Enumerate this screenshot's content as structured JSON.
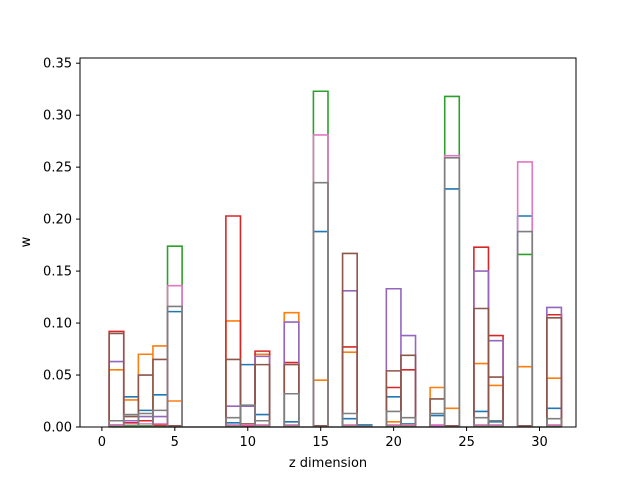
{
  "chart_data": {
    "type": "step-histogram",
    "title": "",
    "xlabel": "z dimension",
    "ylabel": "w",
    "xlim": [
      -1.5,
      32.5
    ],
    "ylim": [
      0,
      0.355
    ],
    "xticks": [
      0,
      5,
      10,
      15,
      20,
      25,
      30
    ],
    "yticks": [
      0.0,
      0.05,
      0.1,
      0.15,
      0.2,
      0.25,
      0.3,
      0.35
    ],
    "ytick_labels": [
      "0.00",
      "0.05",
      "0.10",
      "0.15",
      "0.20",
      "0.25",
      "0.30",
      "0.35"
    ],
    "grid": false,
    "bin_width": 1,
    "bin_centers": [
      1,
      2,
      3,
      4,
      5,
      6,
      7,
      8,
      9,
      10,
      11,
      12,
      13,
      14,
      15,
      16,
      17,
      18,
      19,
      20,
      21,
      22,
      23,
      24,
      25,
      26,
      27,
      28,
      29,
      30,
      31
    ],
    "series": [
      {
        "color": "#1f77b4",
        "values": [
          0.002,
          0.029,
          0.016,
          0.031,
          0.111,
          0,
          0,
          0,
          0.004,
          0.06,
          0.012,
          0,
          0.005,
          0,
          0.188,
          0,
          0.008,
          0.002,
          0,
          0.029,
          0.003,
          0,
          0.011,
          0.229,
          0,
          0.015,
          0.005,
          0,
          0.203,
          0,
          0.018
        ]
      },
      {
        "color": "#ff7f0e",
        "values": [
          0.055,
          0.026,
          0.07,
          0.078,
          0.025,
          0,
          0,
          0,
          0.102,
          0.002,
          0.07,
          0,
          0.11,
          0,
          0.045,
          0,
          0.072,
          0,
          0,
          0.005,
          0.002,
          0,
          0.038,
          0.018,
          0,
          0.061,
          0.04,
          0,
          0.058,
          0,
          0.047
        ]
      },
      {
        "color": "#2ca02c",
        "values": [
          0.001,
          0.001,
          0.001,
          0.001,
          0.174,
          0,
          0,
          0,
          0.001,
          0.001,
          0.001,
          0,
          0.001,
          0,
          0.323,
          0,
          0.001,
          0,
          0,
          0.001,
          0.001,
          0,
          0.001,
          0.318,
          0,
          0.001,
          0.001,
          0,
          0.166,
          0,
          0.001
        ]
      },
      {
        "color": "#d62728",
        "values": [
          0.092,
          0.004,
          0.006,
          0.002,
          0.001,
          0,
          0,
          0,
          0.203,
          0.001,
          0.073,
          0,
          0.062,
          0,
          0.001,
          0,
          0.077,
          0,
          0,
          0.038,
          0.055,
          0,
          0.001,
          0.001,
          0,
          0.173,
          0.088,
          0,
          0.001,
          0,
          0.108
        ]
      },
      {
        "color": "#9467bd",
        "values": [
          0.063,
          0.006,
          0.01,
          0.01,
          0.001,
          0,
          0,
          0,
          0.02,
          0.02,
          0.068,
          0,
          0.101,
          0,
          0.001,
          0,
          0.131,
          0,
          0,
          0.133,
          0.088,
          0,
          0.001,
          0.001,
          0,
          0.15,
          0.083,
          0,
          0.001,
          0,
          0.115
        ]
      },
      {
        "color": "#8c564b",
        "values": [
          0.09,
          0.01,
          0.05,
          0.065,
          0.001,
          0,
          0,
          0,
          0.065,
          0.003,
          0.06,
          0,
          0.06,
          0,
          0.001,
          0,
          0.167,
          0,
          0,
          0.054,
          0.069,
          0,
          0.027,
          0.001,
          0,
          0.114,
          0.048,
          0,
          0.001,
          0,
          0.105
        ]
      },
      {
        "color": "#e377c2",
        "values": [
          0.002,
          0.003,
          0.003,
          0.003,
          0.136,
          0,
          0,
          0,
          0.002,
          0.002,
          0.002,
          0,
          0.002,
          0,
          0.281,
          0,
          0.002,
          0,
          0,
          0.002,
          0.002,
          0,
          0.002,
          0.261,
          0,
          0.002,
          0.002,
          0,
          0.255,
          0,
          0.002
        ]
      },
      {
        "color": "#7f7f7f",
        "values": [
          0.006,
          0.012,
          0.013,
          0.016,
          0.116,
          0,
          0,
          0,
          0.009,
          0.021,
          0.006,
          0,
          0.032,
          0,
          0.235,
          0,
          0.013,
          0.001,
          0,
          0.015,
          0.009,
          0,
          0.013,
          0.259,
          0,
          0.009,
          0.006,
          0,
          0.188,
          0,
          0.008
        ]
      }
    ]
  }
}
